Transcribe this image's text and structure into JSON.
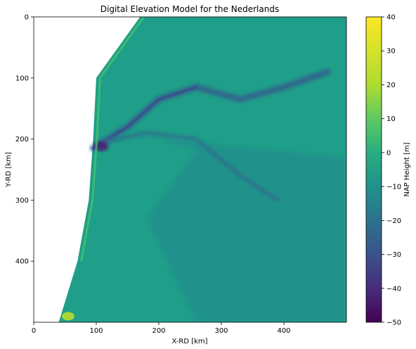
{
  "chart_data": {
    "type": "heatmap",
    "title": "Digital Elevation Model for the Nederlands",
    "xlabel": "X-RD [km]",
    "ylabel": "Y-RD [km]",
    "xlim": [
      0,
      500
    ],
    "ylim": [
      500,
      0
    ],
    "xticks": [
      0,
      100,
      200,
      300,
      400
    ],
    "yticks": [
      0,
      100,
      200,
      300,
      400
    ],
    "colorbar": {
      "label": "NAP Height [m]",
      "range": [
        -50,
        40
      ],
      "ticks": [
        40,
        30,
        20,
        10,
        0,
        -10,
        -20,
        -30,
        -40,
        -50
      ],
      "colormap": "viridis"
    },
    "features": {
      "coastline_x_km": [
        [
          0,
          170
        ],
        [
          100,
          100
        ],
        [
          200,
          95
        ],
        [
          300,
          88
        ],
        [
          400,
          70
        ],
        [
          500,
          40
        ]
      ],
      "main_channel_km": [
        [
          95,
          215
        ],
        [
          150,
          180
        ],
        [
          200,
          135
        ],
        [
          260,
          115
        ],
        [
          330,
          135
        ],
        [
          400,
          115
        ],
        [
          470,
          90
        ]
      ],
      "secondary_channel_km": [
        [
          110,
          205
        ],
        [
          180,
          190
        ],
        [
          260,
          200
        ],
        [
          330,
          260
        ],
        [
          390,
          300
        ]
      ]
    }
  }
}
